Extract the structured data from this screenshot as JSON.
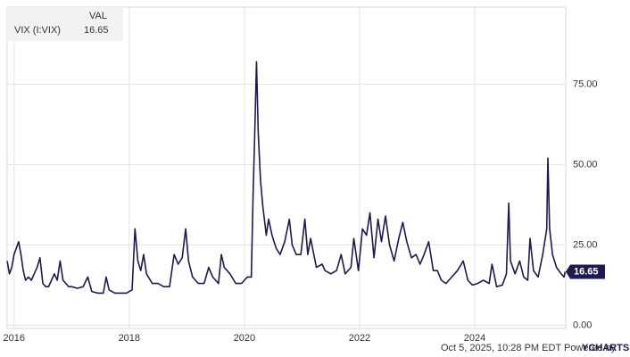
{
  "chart_data": {
    "type": "line",
    "header_label": "VAL",
    "footer_text": "Oct 5, 2025, 10:28 PM EDT Powered by",
    "brand": "YCHARTS",
    "x": [
      2015.88,
      2015.92,
      2015.96,
      2016.0,
      2016.04,
      2016.08,
      2016.12,
      2016.16,
      2016.2,
      2016.25,
      2016.3,
      2016.35,
      2016.4,
      2016.45,
      2016.5,
      2016.55,
      2016.6,
      2016.65,
      2016.7,
      2016.75,
      2016.8,
      2016.85,
      2016.9,
      2016.95,
      2017.0,
      2017.1,
      2017.2,
      2017.28,
      2017.35,
      2017.45,
      2017.55,
      2017.6,
      2017.65,
      2017.75,
      2017.85,
      2017.95,
      2018.05,
      2018.1,
      2018.15,
      2018.2,
      2018.25,
      2018.3,
      2018.4,
      2018.5,
      2018.6,
      2018.7,
      2018.78,
      2018.85,
      2018.92,
      2018.98,
      2019.03,
      2019.1,
      2019.2,
      2019.3,
      2019.38,
      2019.45,
      2019.55,
      2019.6,
      2019.65,
      2019.75,
      2019.85,
      2019.95,
      2020.05,
      2020.12,
      2020.15,
      2020.18,
      2020.21,
      2020.24,
      2020.28,
      2020.32,
      2020.38,
      2020.42,
      2020.48,
      2020.55,
      2020.62,
      2020.7,
      2020.78,
      2020.83,
      2020.9,
      2020.98,
      2021.05,
      2021.1,
      2021.15,
      2021.25,
      2021.35,
      2021.4,
      2021.5,
      2021.6,
      2021.68,
      2021.75,
      2021.85,
      2021.9,
      2021.98,
      2022.05,
      2022.12,
      2022.18,
      2022.25,
      2022.32,
      2022.38,
      2022.45,
      2022.52,
      2022.6,
      2022.68,
      2022.75,
      2022.82,
      2022.9,
      2022.98,
      2023.05,
      2023.12,
      2023.2,
      2023.28,
      2023.35,
      2023.42,
      2023.5,
      2023.6,
      2023.7,
      2023.8,
      2023.88,
      2023.96,
      2024.05,
      2024.15,
      2024.25,
      2024.3,
      2024.38,
      2024.48,
      2024.55,
      2024.59,
      2024.62,
      2024.7,
      2024.78,
      2024.85,
      2024.92,
      2024.96,
      2025.02,
      2025.1,
      2025.18,
      2025.25,
      2025.27,
      2025.3,
      2025.35,
      2025.42,
      2025.5,
      2025.55,
      2025.57
    ],
    "series": [
      {
        "name": "VIX (I:VIX)",
        "color": "#1c1a4f",
        "values": [
          20,
          16,
          18,
          22,
          24,
          26,
          22,
          17,
          14,
          15,
          14,
          16,
          18,
          21,
          13,
          12,
          12,
          14,
          16,
          14,
          20,
          14,
          13,
          12,
          12,
          11.5,
          12,
          15,
          10.5,
          10,
          10,
          15,
          11,
          10,
          10,
          10,
          11,
          30,
          20,
          17,
          22,
          16,
          13,
          13,
          12,
          12,
          22,
          19,
          21,
          30,
          20,
          15,
          13,
          13,
          18,
          15,
          13,
          22,
          18,
          16,
          13,
          13,
          15,
          15,
          40,
          60,
          82,
          60,
          45,
          37,
          28,
          33,
          28,
          24,
          22,
          26,
          33,
          25,
          22,
          22,
          33,
          22,
          27,
          18,
          19,
          17,
          16,
          17,
          22,
          16,
          18,
          27,
          17,
          30,
          28,
          35,
          21,
          33,
          26,
          34,
          25,
          20,
          27,
          32,
          26,
          21,
          22,
          19,
          22,
          26,
          17,
          17,
          14,
          13,
          15,
          17,
          20,
          14,
          12.5,
          13,
          14,
          13,
          19,
          12,
          12.5,
          16,
          38,
          20,
          16,
          20,
          15,
          14,
          27,
          17,
          15,
          22,
          30,
          52,
          30,
          22,
          18,
          16,
          15,
          16.65
        ]
      }
    ],
    "xlim": [
      2015.88,
      2025.58
    ],
    "ylim": [
      -1,
      99
    ],
    "xticks": [
      2016,
      2018,
      2020,
      2022,
      2024
    ],
    "yticks": [
      {
        "value": 0,
        "label": "0.00"
      },
      {
        "value": 25,
        "label": "25.00"
      },
      {
        "value": 50,
        "label": "50.00"
      },
      {
        "value": 75,
        "label": "75.00"
      }
    ],
    "grid": true
  }
}
